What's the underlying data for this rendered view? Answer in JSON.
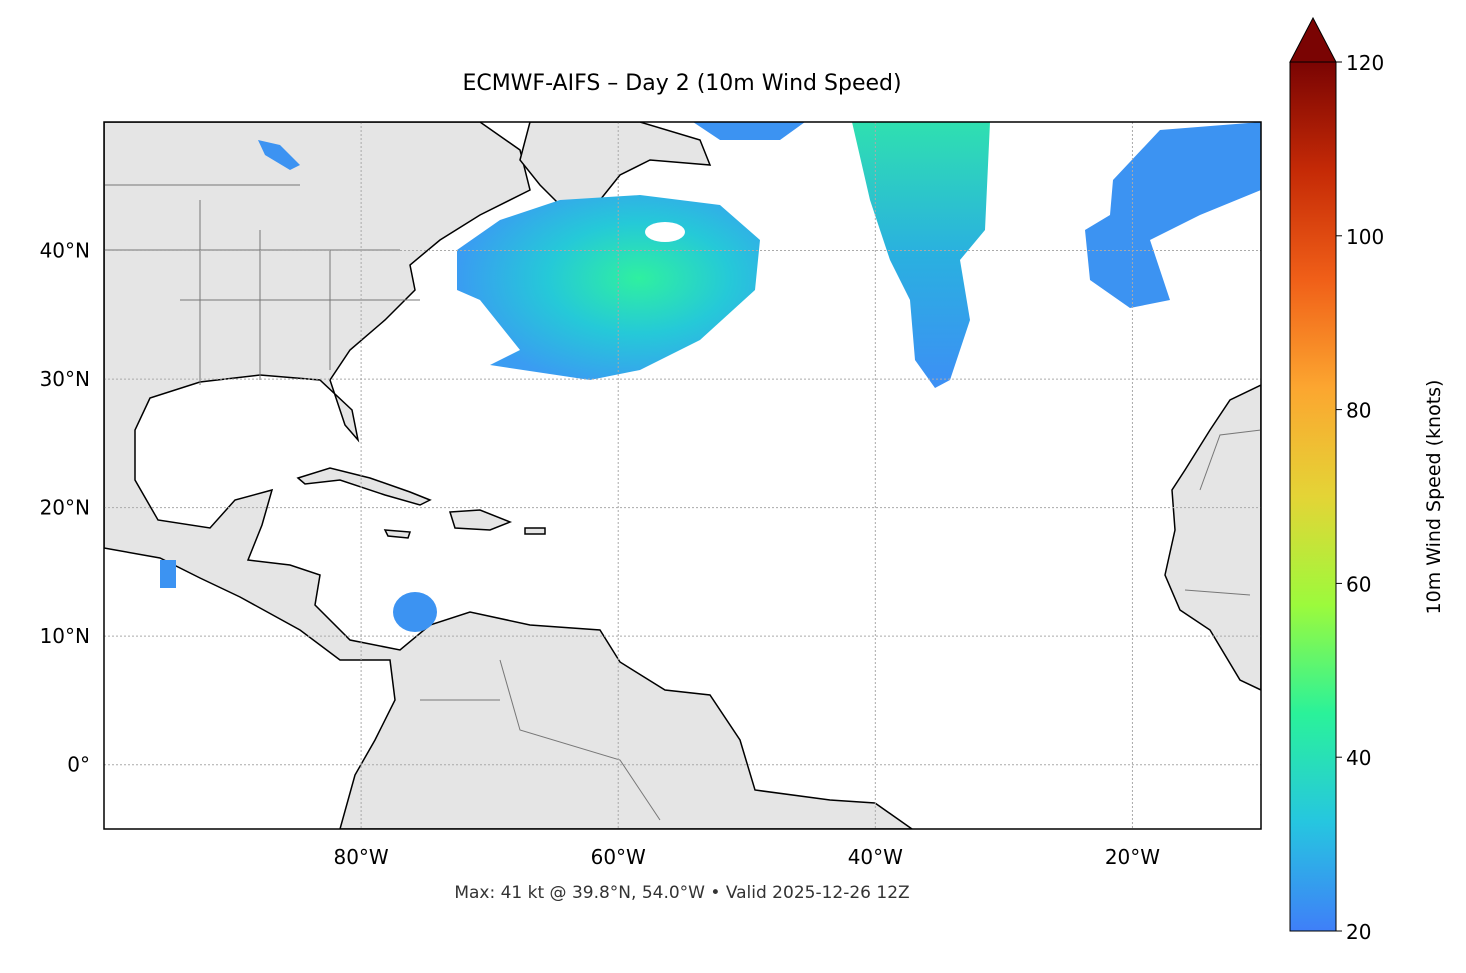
{
  "title": "ECMWF-AIFS – Day 2 (10m Wind Speed)",
  "map": {
    "lon_lim": [
      -100,
      -10
    ],
    "lat_lim": [
      -5,
      50
    ],
    "lon_ticks": [
      {
        "value": -80,
        "label": "80°W"
      },
      {
        "value": -60,
        "label": "60°W"
      },
      {
        "value": -40,
        "label": "40°W"
      },
      {
        "value": -20,
        "label": "20°W"
      }
    ],
    "lat_ticks": [
      {
        "value": 0,
        "label": "0°"
      },
      {
        "value": 10,
        "label": "10°N"
      },
      {
        "value": 20,
        "label": "20°N"
      },
      {
        "value": 30,
        "label": "30°N"
      },
      {
        "value": 40,
        "label": "40°N"
      }
    ],
    "grid": true
  },
  "colorbar": {
    "label": "10m Wind Speed (knots)",
    "lim": [
      20,
      120
    ],
    "ticks": [
      20,
      40,
      60,
      80,
      100,
      120
    ],
    "colors": [
      "#3f7ff8",
      "#26c6e0",
      "#2af29a",
      "#9cfa3c",
      "#e4d436",
      "#fca630",
      "#f05f18",
      "#c52a06",
      "#7a0403"
    ]
  },
  "footer": "Max: 41 kt @ 39.8°N, 54.0°W • Valid 2025-12-26 12Z"
}
